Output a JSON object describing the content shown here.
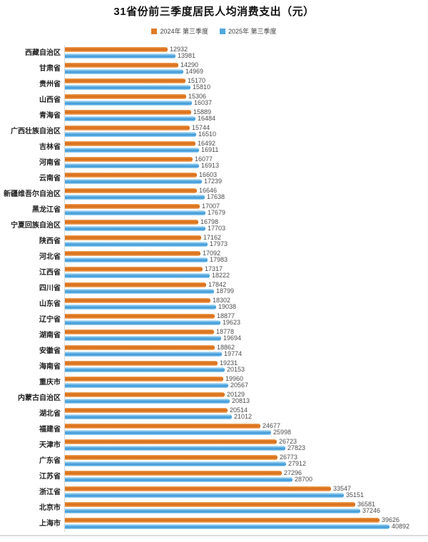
{
  "chart_data": {
    "type": "bar",
    "orientation": "horizontal",
    "title": "31省份前三季度居民人均消费支出（元）",
    "xlabel": "",
    "ylabel": "",
    "xlim": [
      0,
      41000
    ],
    "grid": false,
    "legend_position": "top",
    "value_labels": true,
    "categories": [
      "西藏自治区",
      "甘肃省",
      "贵州省",
      "山西省",
      "青海省",
      "广西壮族自治区",
      "吉林省",
      "河南省",
      "云南省",
      "新疆维吾尔自治区",
      "黑龙江省",
      "宁夏回族自治区",
      "陕西省",
      "河北省",
      "江西省",
      "四川省",
      "山东省",
      "辽宁省",
      "湖南省",
      "安徽省",
      "海南省",
      "重庆市",
      "内蒙古自治区",
      "湖北省",
      "福建省",
      "天津市",
      "广东省",
      "江苏省",
      "浙江省",
      "北京市",
      "上海市"
    ],
    "series": [
      {
        "name": "2024年 第三季度",
        "color": "#E07B24",
        "values": [
          12932,
          14290,
          15170,
          15306,
          15889,
          15744,
          16492,
          16077,
          16603,
          16646,
          17007,
          16798,
          17162,
          17092,
          17317,
          17842,
          18302,
          18877,
          18778,
          18862,
          19231,
          19960,
          20129,
          20514,
          24677,
          26723,
          26773,
          27296,
          33547,
          36581,
          39626
        ]
      },
      {
        "name": "2025年 第三季度",
        "color": "#4FA8DC",
        "values": [
          13981,
          14969,
          15810,
          16037,
          16484,
          16510,
          16911,
          16913,
          17239,
          17638,
          17679,
          17703,
          17973,
          17983,
          18222,
          18799,
          19038,
          19623,
          19694,
          19774,
          20153,
          20567,
          20813,
          21012,
          25998,
          27823,
          27912,
          28700,
          35151,
          37246,
          40892
        ]
      }
    ]
  }
}
